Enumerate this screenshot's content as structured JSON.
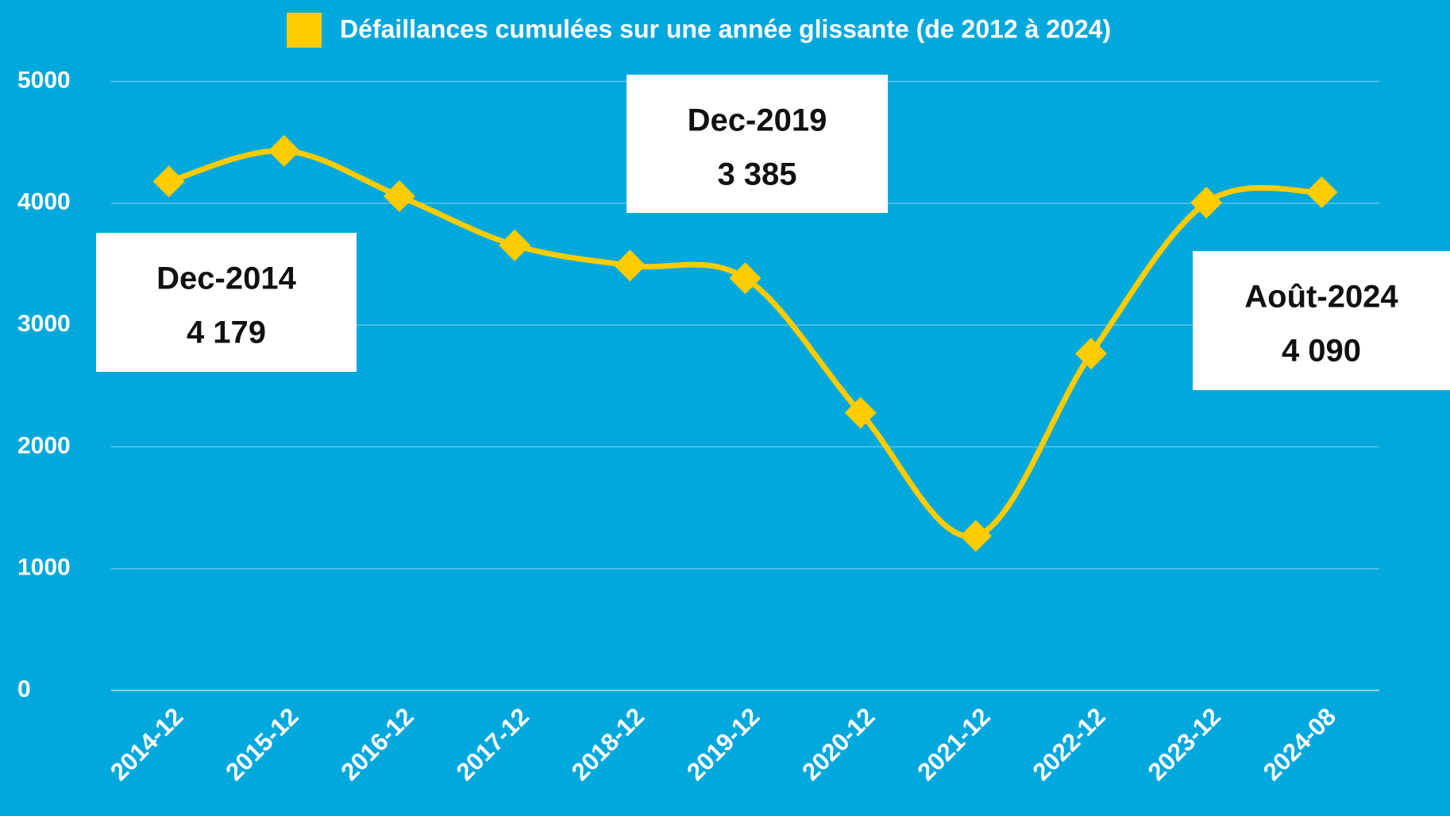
{
  "chart_data": {
    "type": "line",
    "categories": [
      "2014-12",
      "2015-12",
      "2016-12",
      "2017-12",
      "2018-12",
      "2019-12",
      "2020-12",
      "2021-12",
      "2022-12",
      "2023-12",
      "2024-08"
    ],
    "series": [
      {
        "name": "Défaillances cumulées sur une année glissante (de 2012 à 2024)",
        "color": "#ffcc00",
        "values": [
          4179,
          4430,
          4058,
          3655,
          3488,
          3385,
          2280,
          1269,
          2766,
          4005,
          4090
        ]
      }
    ],
    "ylim": [
      0,
      5000
    ],
    "yticks": [
      0,
      1000,
      2000,
      3000,
      4000,
      5000
    ],
    "grid": true,
    "legend": "top",
    "annotations": [
      {
        "lines": [
          "Dec-2014",
          "4 179"
        ]
      },
      {
        "lines": [
          "Dec-2019",
          "3 385"
        ]
      },
      {
        "lines": [
          "Août-2024",
          "4 090"
        ]
      }
    ]
  }
}
